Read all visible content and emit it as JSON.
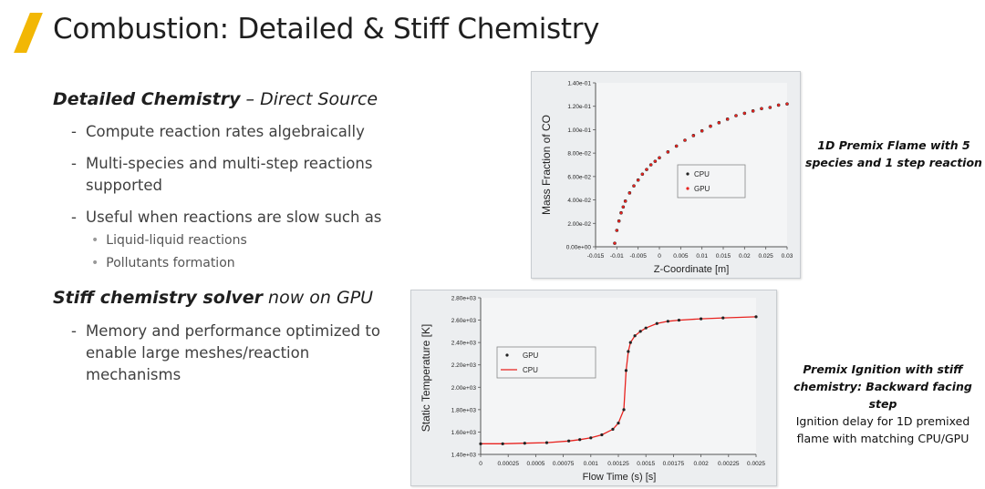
{
  "title": "Combustion: Detailed & Stiff Chemistry",
  "section1": {
    "heading_bold": "Detailed Chemistry",
    "heading_rest": " – Direct Source",
    "bullets": [
      "Compute reaction rates algebraically",
      "Multi-species and multi-step reactions",
      "supported",
      "Useful when reactions are slow such as"
    ],
    "subbullets": [
      "Liquid-liquid reactions",
      "Pollutants formation"
    ]
  },
  "section2": {
    "heading_bold": "Stiff chemistry solver",
    "heading_rest": " now on GPU",
    "bullet_lines": [
      "Memory and performance optimized to",
      "enable large meshes/reaction",
      "mechanisms"
    ]
  },
  "captions": {
    "top_line1": "1D Premix Flame with 5",
    "top_line2": "species and 1 step reaction",
    "bottom_em1": "Premix Ignition with stiff",
    "bottom_em2": "chemistry: Backward facing step",
    "bottom_line3": "Ignition delay for 1D premixed",
    "bottom_line4": "flame with matching CPU/GPU"
  },
  "colors": {
    "accent": "#f2b705",
    "cpu": "#222222",
    "gpu": "#e8231f",
    "chart_bg": "#eceef0"
  },
  "chart_data": [
    {
      "type": "scatter",
      "xlabel": "Z-Coordinate [m]",
      "ylabel": "Mass Fraction of CO",
      "xlim": [
        -0.015,
        0.03
      ],
      "ylim": [
        0,
        0.14
      ],
      "x_ticks": [
        "-0.015",
        "-0.01",
        "-0.005",
        "0",
        "0.005",
        "0.01",
        "0.015",
        "0.02",
        "0.025",
        "0.03"
      ],
      "y_ticks": [
        "0.00e+00",
        "2.00e-02",
        "4.00e-02",
        "6.00e-02",
        "8.00e-02",
        "1.00e-01",
        "1.20e-01",
        "1.40e-01"
      ],
      "legend": "center",
      "series": [
        {
          "name": "CPU",
          "marker": "black dot"
        },
        {
          "name": "GPU",
          "marker": "red dot"
        }
      ],
      "x": [
        -0.0105,
        -0.01,
        -0.0095,
        -0.009,
        -0.0085,
        -0.008,
        -0.007,
        -0.006,
        -0.005,
        -0.004,
        -0.003,
        -0.002,
        -0.001,
        0.0,
        0.002,
        0.004,
        0.006,
        0.008,
        0.01,
        0.012,
        0.014,
        0.016,
        0.018,
        0.02,
        0.022,
        0.024,
        0.026,
        0.028,
        0.03
      ],
      "y": [
        0.003,
        0.014,
        0.022,
        0.029,
        0.034,
        0.039,
        0.046,
        0.052,
        0.057,
        0.062,
        0.066,
        0.07,
        0.073,
        0.076,
        0.081,
        0.086,
        0.091,
        0.095,
        0.099,
        0.103,
        0.106,
        0.109,
        0.112,
        0.114,
        0.116,
        0.118,
        0.119,
        0.121,
        0.122
      ]
    },
    {
      "type": "line",
      "xlabel": "Flow Time (s) [s]",
      "ylabel": "Static Temperature [K]",
      "xlim": [
        0,
        0.0025
      ],
      "ylim": [
        1400,
        2800
      ],
      "x_ticks": [
        "0",
        "0.00025",
        "0.0005",
        "0.00075",
        "0.001",
        "0.00125",
        "0.0015",
        "0.00175",
        "0.002",
        "0.00225",
        "0.0025"
      ],
      "y_ticks": [
        "1.40e+03",
        "1.60e+03",
        "1.80e+03",
        "2.00e+03",
        "2.20e+03",
        "2.40e+03",
        "2.60e+03",
        "2.80e+03"
      ],
      "legend": "top-left",
      "series": [
        {
          "name": "GPU",
          "marker": "black dot"
        },
        {
          "name": "CPU",
          "marker": "red line"
        }
      ],
      "x": [
        0,
        0.0002,
        0.0004,
        0.0006,
        0.0008,
        0.0009,
        0.001,
        0.0011,
        0.0012,
        0.00125,
        0.0013,
        0.00132,
        0.00134,
        0.00136,
        0.0014,
        0.00145,
        0.0015,
        0.0016,
        0.0017,
        0.0018,
        0.002,
        0.0022,
        0.0025
      ],
      "y": [
        1495,
        1495,
        1500,
        1505,
        1520,
        1532,
        1548,
        1575,
        1625,
        1680,
        1800,
        2150,
        2320,
        2400,
        2460,
        2500,
        2530,
        2570,
        2590,
        2600,
        2612,
        2620,
        2630
      ]
    }
  ]
}
